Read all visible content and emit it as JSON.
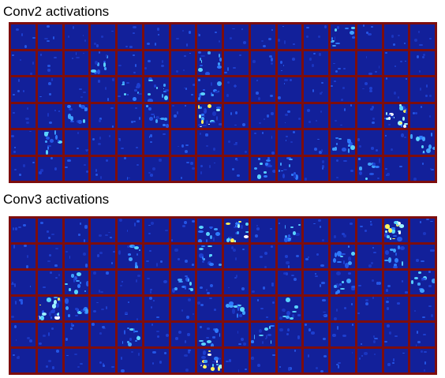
{
  "panels": [
    {
      "id": "conv2",
      "title": "Conv2 activations",
      "rows": 6,
      "cols": 16,
      "grid_color": "#7d0d0d",
      "base_color": "#12209a",
      "bright_cells": [
        [
          0,
          12
        ],
        [
          1,
          3
        ],
        [
          1,
          7
        ],
        [
          2,
          4
        ],
        [
          2,
          5
        ],
        [
          2,
          7
        ],
        [
          3,
          2
        ],
        [
          3,
          5
        ],
        [
          3,
          7
        ],
        [
          3,
          14
        ],
        [
          4,
          1
        ],
        [
          4,
          12
        ],
        [
          4,
          15
        ],
        [
          5,
          9
        ],
        [
          5,
          10
        ],
        [
          5,
          13
        ]
      ],
      "hot_cells": [
        [
          3,
          14
        ],
        [
          3,
          7
        ]
      ]
    },
    {
      "id": "conv3",
      "title": "Conv3 activations",
      "rows": 6,
      "cols": 16,
      "grid_color": "#7d0d0d",
      "base_color": "#12209a",
      "bright_cells": [
        [
          0,
          7
        ],
        [
          0,
          8
        ],
        [
          0,
          10
        ],
        [
          0,
          14
        ],
        [
          1,
          4
        ],
        [
          1,
          7
        ],
        [
          1,
          12
        ],
        [
          1,
          14
        ],
        [
          2,
          2
        ],
        [
          2,
          6
        ],
        [
          2,
          12
        ],
        [
          2,
          15
        ],
        [
          3,
          1
        ],
        [
          3,
          2
        ],
        [
          3,
          8
        ],
        [
          3,
          10
        ],
        [
          4,
          4
        ],
        [
          4,
          7
        ],
        [
          4,
          9
        ],
        [
          5,
          7
        ]
      ],
      "hot_cells": [
        [
          3,
          1
        ],
        [
          0,
          8
        ],
        [
          0,
          14
        ],
        [
          5,
          7
        ]
      ]
    }
  ]
}
